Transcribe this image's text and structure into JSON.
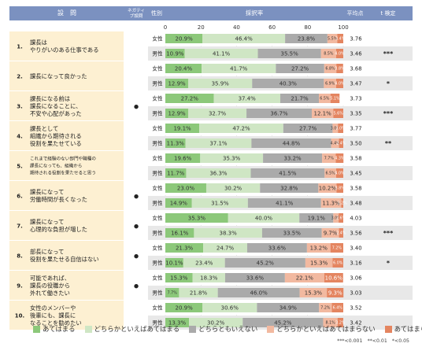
{
  "header": {
    "question": "設　問",
    "negative": "ネガティブ設問",
    "gender": "性別",
    "rate": "採択率",
    "mean": "平均点",
    "ttest": "t 検定"
  },
  "significance_note": "***<0.001　**<0.01　*<0.05",
  "colors": {
    "c1": "#8cc87a",
    "c2": "#cfe6c4",
    "c3": "#aaaaaa",
    "c4": "#f2b9a0",
    "c5": "#e48560",
    "header_bg": "#7b91c0",
    "question_bg": "#fdf0d2",
    "male_row_bg": "#e8e8e8"
  },
  "chart_data": {
    "type": "bar",
    "orientation": "horizontal",
    "stacked": true,
    "xlim": [
      0,
      100
    ],
    "xticks": [
      "0",
      "20",
      "40",
      "60",
      "80",
      "100"
    ],
    "legend": {
      "position": "bottom",
      "items": [
        "あてはまる",
        "どちらかといえばあてはまる",
        "どちらともいえない",
        "どちらかといえばあてはまらない",
        "あてはまらない"
      ]
    },
    "questions": [
      {
        "num": "1.",
        "lines": [
          "課長は",
          "やりがいのある仕事である"
        ],
        "negative": "",
        "rows": [
          {
            "gender": "女性",
            "values": [
              20.9,
              46.4,
              23.8,
              5.5,
              3.4
            ],
            "labels": [
              "20.9%",
              "46.4%",
              "23.8%",
              "5.5%",
              "3.4%"
            ],
            "mean": "3.76",
            "sig": ""
          },
          {
            "gender": "男性",
            "values": [
              10.9,
              41.1,
              35.5,
              8.5,
              4.0
            ],
            "labels": [
              "10.9%",
              "41.1%",
              "35.5%",
              "8.5%",
              "4.0%"
            ],
            "mean": "3.46",
            "sig": "***"
          }
        ]
      },
      {
        "num": "2.",
        "lines": [
          "課長になって良かった"
        ],
        "negative": "",
        "rows": [
          {
            "gender": "女性",
            "values": [
              20.4,
              41.7,
              27.2,
              6.8,
              3.8
            ],
            "labels": [
              "20.4%",
              "41.7%",
              "27.2%",
              "6.8%",
              "3.8%"
            ],
            "mean": "3.68",
            "sig": ""
          },
          {
            "gender": "男性",
            "values": [
              12.9,
              35.9,
              40.3,
              6.9,
              4.0
            ],
            "labels": [
              "12.9%",
              "35.9%",
              "40.3%",
              "6.9%",
              "4.0%"
            ],
            "mean": "3.47",
            "sig": "*"
          }
        ]
      },
      {
        "num": "3.",
        "lines": [
          "課長になる前は",
          "課長になることに、",
          "不安や心配があった"
        ],
        "negative": "●",
        "rows": [
          {
            "gender": "女性",
            "values": [
              27.2,
              37.4,
              21.7,
              6.5,
              5.1
            ],
            "labels": [
              "27.2%",
              "37.4%",
              "21.7%",
              "6.5%",
              "5.1%"
            ],
            "mean": "3.73",
            "sig": ""
          },
          {
            "gender": "男性",
            "values": [
              12.9,
              32.7,
              36.7,
              12.1,
              5.6
            ],
            "labels": [
              "12.9%",
              "32.7%",
              "36.7%",
              "12.1%",
              "5.6%"
            ],
            "mean": "3.35",
            "sig": "***"
          }
        ]
      },
      {
        "num": "4.",
        "lines": [
          "課長として",
          "組織から期待される",
          "役割を果たせている"
        ],
        "negative": "",
        "rows": [
          {
            "gender": "女性",
            "values": [
              19.1,
              47.2,
              27.7,
              3.0,
              3.0
            ],
            "labels": [
              "19.1%",
              "47.2%",
              "27.7%",
              "3.0%",
              "3.0%"
            ],
            "mean": "3.77",
            "sig": ""
          },
          {
            "gender": "男性",
            "values": [
              11.3,
              37.1,
              44.8,
              4.4,
              2.4
            ],
            "labels": [
              "11.3%",
              "37.1%",
              "44.8%",
              "4.4%",
              "2.4%"
            ],
            "mean": "3.50",
            "sig": "**"
          }
        ]
      },
      {
        "num": "5.",
        "lines": [
          "これまで経験のない部門や職種の",
          "課長になっても、組織から",
          "期待される役割を果たせると思う"
        ],
        "negative": "",
        "small": true,
        "rows": [
          {
            "gender": "女性",
            "values": [
              19.6,
              35.3,
              33.2,
              7.7,
              4.3
            ],
            "labels": [
              "19.6%",
              "35.3%",
              "33.2%",
              "7.7%",
              "4.3%"
            ],
            "mean": "3.58",
            "sig": ""
          },
          {
            "gender": "男性",
            "values": [
              11.7,
              36.3,
              41.5,
              6.5,
              4.0
            ],
            "labels": [
              "11.7%",
              "36.3%",
              "41.5%",
              "6.5%",
              "4.0%"
            ],
            "mean": "3.45",
            "sig": ""
          }
        ]
      },
      {
        "num": "6.",
        "lines": [
          "課長になって",
          "労働時間が長くなった"
        ],
        "negative": "●",
        "rows": [
          {
            "gender": "女性",
            "values": [
              23.0,
              30.2,
              32.8,
              10.2,
              3.8
            ],
            "labels": [
              "23.0%",
              "30.2%",
              "32.8%",
              "10.2%",
              "3.8%"
            ],
            "mean": "3.58",
            "sig": ""
          },
          {
            "gender": "男性",
            "values": [
              14.9,
              31.5,
              41.1,
              11.3,
              1.2
            ],
            "labels": [
              "14.9%",
              "31.5%",
              "41.1%",
              "11.3%",
              "1.2%"
            ],
            "mean": "3.48",
            "sig": ""
          }
        ]
      },
      {
        "num": "7.",
        "lines": [
          "課長になって",
          "心理的な負担が増した"
        ],
        "negative": "●",
        "rows": [
          {
            "gender": "女性",
            "values": [
              35.3,
              40.0,
              19.1,
              3.0,
              2.6
            ],
            "labels": [
              "35.3%",
              "40.0%",
              "19.1%",
              "3.0%",
              "2.6%"
            ],
            "mean": "4.03",
            "sig": ""
          },
          {
            "gender": "男性",
            "values": [
              16.1,
              38.3,
              33.5,
              9.7,
              2.4
            ],
            "labels": [
              "16.1%",
              "38.3%",
              "33.5%",
              "9.7%",
              "2.4%"
            ],
            "mean": "3.56",
            "sig": "***"
          }
        ]
      },
      {
        "num": "8.",
        "lines": [
          "部長になって",
          "役割を果たせる自信はない"
        ],
        "negative": "●",
        "rows": [
          {
            "gender": "女性",
            "values": [
              21.3,
              24.7,
              33.6,
              13.2,
              7.2
            ],
            "labels": [
              "21.3%",
              "24.7%",
              "33.6%",
              "13.2%",
              "7.2%"
            ],
            "mean": "3.40",
            "sig": ""
          },
          {
            "gender": "男性",
            "values": [
              10.1,
              23.4,
              45.2,
              15.3,
              6.0
            ],
            "labels": [
              "10.1%",
              "23.4%",
              "45.2%",
              "15.3%",
              "6.0%"
            ],
            "mean": "3.16",
            "sig": "*"
          }
        ]
      },
      {
        "num": "9.",
        "lines": [
          "可能であれば、",
          "課長の役職から",
          "外れて働きたい"
        ],
        "negative": "●",
        "rows": [
          {
            "gender": "女性",
            "values": [
              15.3,
              18.3,
              33.6,
              22.1,
              10.6
            ],
            "labels": [
              "15.3%",
              "18.3%",
              "33.6%",
              "22.1%",
              "10.6%"
            ],
            "mean": "3.06",
            "sig": ""
          },
          {
            "gender": "男性",
            "values": [
              7.7,
              21.8,
              46.0,
              15.3,
              9.3
            ],
            "labels": [
              "7.7%",
              "21.8%",
              "46.0%",
              "15.3%",
              "9.3%"
            ],
            "mean": "3.03",
            "sig": ""
          }
        ]
      },
      {
        "num": "10.",
        "lines": [
          "女性のメンバーや",
          "後輩にも、課長に",
          "なることを勧めたい"
        ],
        "negative": "",
        "rows": [
          {
            "gender": "女性",
            "values": [
              20.9,
              30.6,
              34.9,
              7.2,
              6.4
            ],
            "labels": [
              "20.9%",
              "30.6%",
              "34.9%",
              "7.2%",
              "6.4%"
            ],
            "mean": "3.52",
            "sig": ""
          },
          {
            "gender": "男性",
            "values": [
              13.3,
              30.2,
              45.2,
              8.1,
              3.2
            ],
            "labels": [
              "13.3%",
              "30.2%",
              "45.2%",
              "8.1%",
              "3.2%"
            ],
            "mean": "3.42",
            "sig": ""
          }
        ]
      }
    ]
  }
}
